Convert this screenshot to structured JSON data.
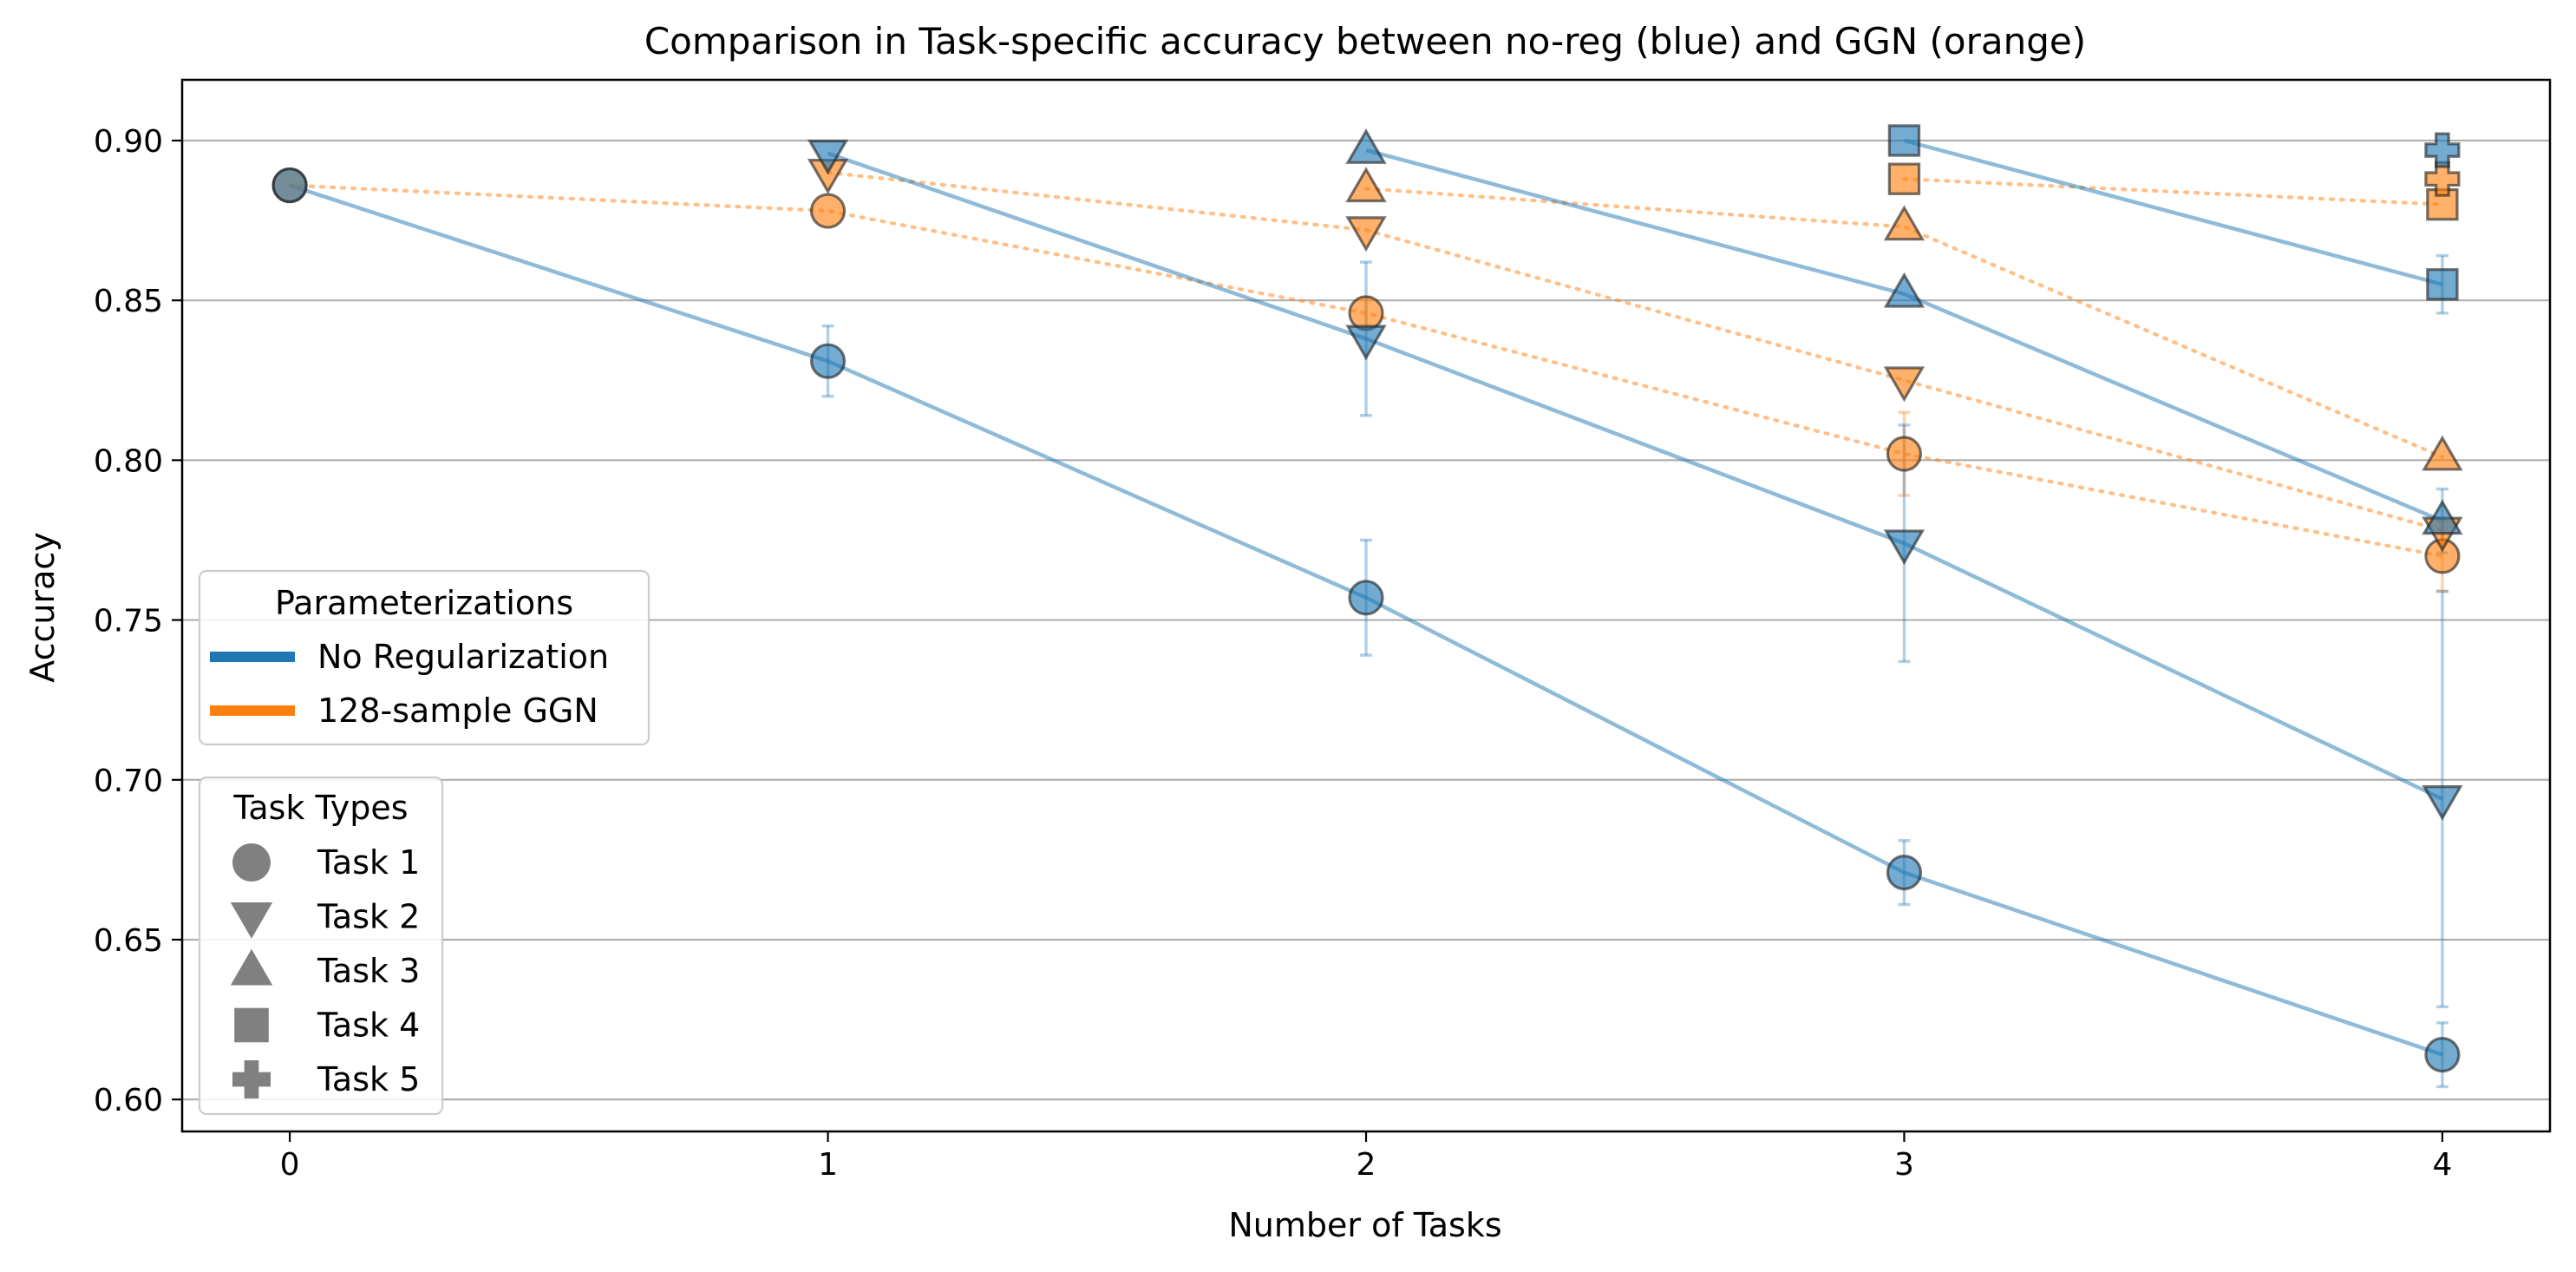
{
  "chart_data": {
    "type": "line",
    "title": "Comparison in Task-specific accuracy between no-reg (blue) and GGN (orange)",
    "xlabel": "Number of Tasks",
    "ylabel": "Accuracy",
    "x_ticks": [
      0,
      1,
      2,
      3,
      4
    ],
    "x_tick_labels": [
      "0",
      "1",
      "2",
      "3",
      "4"
    ],
    "y_ticks": [
      0.6,
      0.65,
      0.7,
      0.75,
      0.8,
      0.85,
      0.9
    ],
    "y_tick_labels": [
      "0.60",
      "0.65",
      "0.70",
      "0.75",
      "0.80",
      "0.85",
      "0.90"
    ],
    "xlim": [
      -0.2,
      4.2
    ],
    "ylim": [
      0.59,
      0.919
    ],
    "grid": "horizontal",
    "colors": {
      "noreg": "#1f77b4",
      "ggn": "#ff7f0e"
    },
    "legend_param": {
      "title": "Parameterizations",
      "placement": "center-left",
      "entries": [
        {
          "label": "No Regularization",
          "color": "#1f77b4"
        },
        {
          "label": "128-sample GGN",
          "color": "#ff7f0e"
        }
      ]
    },
    "legend_tasks": {
      "title": "Task Types",
      "placement": "lower-left",
      "entries": [
        {
          "label": "Task 1",
          "marker": "circle"
        },
        {
          "label": "Task 2",
          "marker": "triangle-down"
        },
        {
          "label": "Task 3",
          "marker": "triangle-up"
        },
        {
          "label": "Task 4",
          "marker": "square"
        },
        {
          "label": "Task 5",
          "marker": "plus"
        }
      ]
    },
    "series": [
      {
        "method": "noreg",
        "task": 1,
        "marker": "circle",
        "x": [
          0,
          1,
          2,
          3,
          4
        ],
        "y": [
          0.886,
          0.831,
          0.757,
          0.671,
          0.614
        ],
        "err": [
          0,
          0.011,
          0.018,
          0.01,
          0.01
        ]
      },
      {
        "method": "noreg",
        "task": 2,
        "marker": "triangle-down",
        "x": [
          1,
          2,
          3,
          4
        ],
        "y": [
          0.896,
          0.838,
          0.774,
          0.694
        ],
        "err": [
          0,
          0.024,
          0.037,
          0.065
        ]
      },
      {
        "method": "noreg",
        "task": 3,
        "marker": "triangle-up",
        "x": [
          2,
          3,
          4
        ],
        "y": [
          0.897,
          0.852,
          0.781
        ],
        "err": [
          0,
          0,
          0.01
        ]
      },
      {
        "method": "noreg",
        "task": 4,
        "marker": "square",
        "x": [
          3,
          4
        ],
        "y": [
          0.9,
          0.855
        ],
        "err": [
          0,
          0.009
        ]
      },
      {
        "method": "noreg",
        "task": 5,
        "marker": "plus",
        "x": [
          4
        ],
        "y": [
          0.897
        ],
        "err": [
          0
        ]
      },
      {
        "method": "ggn",
        "task": 1,
        "marker": "circle",
        "x": [
          0,
          1,
          2,
          3,
          4
        ],
        "y": [
          0.886,
          0.878,
          0.846,
          0.802,
          0.77
        ],
        "err": [
          0,
          0,
          0.005,
          0.013,
          0.011
        ]
      },
      {
        "method": "ggn",
        "task": 2,
        "marker": "triangle-down",
        "x": [
          1,
          2,
          3,
          4
        ],
        "y": [
          0.89,
          0.872,
          0.825,
          0.778
        ],
        "err": [
          0,
          0,
          0,
          0.004
        ]
      },
      {
        "method": "ggn",
        "task": 3,
        "marker": "triangle-up",
        "x": [
          2,
          3,
          4
        ],
        "y": [
          0.885,
          0.873,
          0.801
        ],
        "err": [
          0,
          0,
          0
        ]
      },
      {
        "method": "ggn",
        "task": 4,
        "marker": "square",
        "x": [
          3,
          4
        ],
        "y": [
          0.888,
          0.88
        ],
        "err": [
          0,
          0
        ]
      },
      {
        "method": "ggn",
        "task": 5,
        "marker": "plus",
        "x": [
          4
        ],
        "y": [
          0.888
        ],
        "err": [
          0
        ]
      }
    ]
  }
}
